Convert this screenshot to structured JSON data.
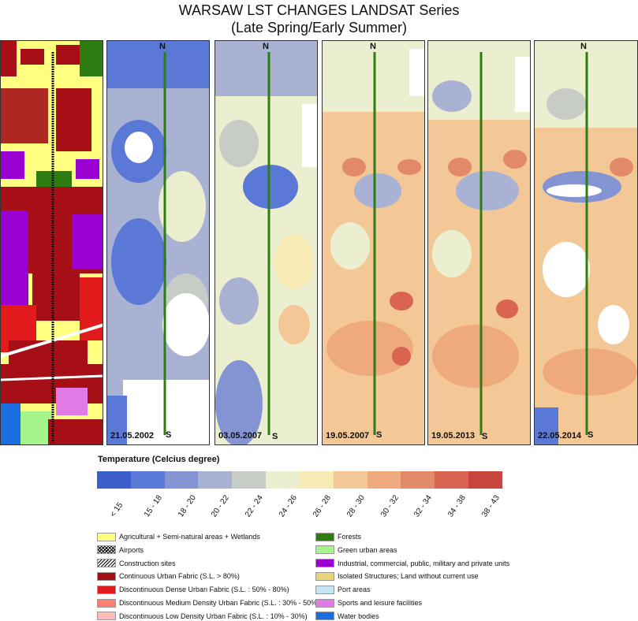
{
  "title_line1": "WARSAW LST CHANGES LANDSAT Series",
  "title_line2": "(Late Spring/Early Summer)",
  "panels": [
    {
      "date": "21.05.2002",
      "n": "N",
      "s": "S"
    },
    {
      "date": "03.05.2007",
      "n": "N",
      "s": "S"
    },
    {
      "date": "19.05.2007",
      "n": "N",
      "s": "S"
    },
    {
      "date": "19.05.2013",
      "n": "N",
      "s": "S"
    },
    {
      "date": "22.05.2014",
      "n": "N",
      "s": "S"
    }
  ],
  "temperature_legend": {
    "title": "Temperature (Celcius degree)",
    "classes": [
      {
        "label": "< 15",
        "color": "#3a5fcd"
      },
      {
        "label": "15 - 18",
        "color": "#5a79d6"
      },
      {
        "label": "18 - 20",
        "color": "#8494d2"
      },
      {
        "label": "20 - 22",
        "color": "#a9b2d3"
      },
      {
        "label": "22 - 24",
        "color": "#c8ccc7"
      },
      {
        "label": "24 - 26",
        "color": "#ecefcf"
      },
      {
        "label": "26 - 28",
        "color": "#f8eab5"
      },
      {
        "label": "28 - 30",
        "color": "#f3c896"
      },
      {
        "label": "30 - 32",
        "color": "#eeaa7d"
      },
      {
        "label": "32 - 34",
        "color": "#e2896a"
      },
      {
        "label": "34 - 38",
        "color": "#d96451"
      },
      {
        "label": "38 - 43",
        "color": "#c8453d"
      }
    ]
  },
  "landcover_legend": {
    "left": [
      {
        "label": "Agricultural + Semi-natural areas + Wetlands",
        "color": "#ffff80"
      },
      {
        "label": "Airports",
        "color": "#ffffff",
        "pattern": "cross"
      },
      {
        "label": "Construction sites",
        "color": "#ffffff",
        "pattern": "hatch"
      },
      {
        "label": "Continuous Urban Fabric (S.L. > 80%)",
        "color": "#a50f15"
      },
      {
        "label": "Discontinuous Dense Urban Fabric (S.L. : 50% -  80%)",
        "color": "#e31a1c"
      },
      {
        "label": "Discontinuous Medium Density Urban Fabric (S.L. : 30% - 50%)",
        "color": "#fb8072"
      },
      {
        "label": "Discontinuous Low Density Urban Fabric (S.L. : 10% - 30%)",
        "color": "#fcbcb8"
      }
    ],
    "right": [
      {
        "label": "Forests",
        "color": "#2e7d12"
      },
      {
        "label": "Green urban areas",
        "color": "#a6f58c"
      },
      {
        "label": "Industrial, commercial, public, military and private units",
        "color": "#9b00d3"
      },
      {
        "label": "Isolated Structures; Land without current use",
        "color": "#e8d27a"
      },
      {
        "label": "Port areas",
        "color": "#c2e4f5"
      },
      {
        "label": "Sports and leisure facilities",
        "color": "#e27ae6"
      },
      {
        "label": "Water bodies",
        "color": "#1a6fe0"
      }
    ]
  },
  "chart_data": {
    "type": "heatmap",
    "title": "WARSAW LST CHANGES LANDSAT Series",
    "subtitle": "(Late Spring/Early Summer)",
    "panels": [
      "21.05.2002",
      "03.05.2007",
      "19.05.2007",
      "19.05.2013",
      "22.05.2014"
    ],
    "legend_title": "Temperature (Celcius degree)",
    "legend_classes": [
      "< 15",
      "15 - 18",
      "18 - 20",
      "20 - 22",
      "22 - 24",
      "24 - 26",
      "26 - 28",
      "28 - 30",
      "30 - 32",
      "32 - 34",
      "34 - 38",
      "38 - 43"
    ]
  }
}
